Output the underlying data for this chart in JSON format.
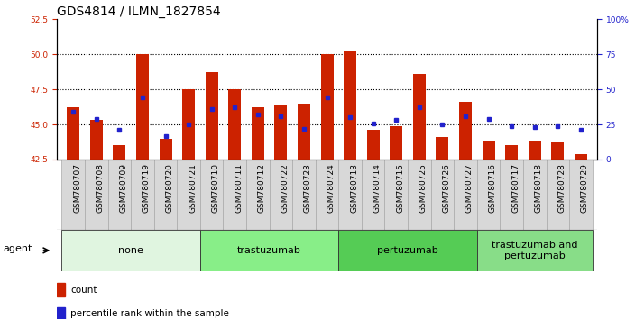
{
  "title": "GDS4814 / ILMN_1827854",
  "samples": [
    "GSM780707",
    "GSM780708",
    "GSM780709",
    "GSM780719",
    "GSM780720",
    "GSM780721",
    "GSM780710",
    "GSM780711",
    "GSM780712",
    "GSM780722",
    "GSM780723",
    "GSM780724",
    "GSM780713",
    "GSM780714",
    "GSM780715",
    "GSM780725",
    "GSM780726",
    "GSM780727",
    "GSM780716",
    "GSM780717",
    "GSM780718",
    "GSM780728",
    "GSM780729"
  ],
  "count_values": [
    46.2,
    45.3,
    43.5,
    50.0,
    44.0,
    47.5,
    48.7,
    47.5,
    46.2,
    46.4,
    46.5,
    50.0,
    50.2,
    44.6,
    44.9,
    48.6,
    44.1,
    46.6,
    43.8,
    43.5,
    43.8,
    43.7,
    42.9
  ],
  "percentile_values": [
    45.9,
    45.4,
    44.6,
    46.9,
    44.2,
    45.0,
    46.1,
    46.2,
    45.7,
    45.6,
    44.7,
    46.9,
    45.5,
    45.1,
    45.3,
    46.2,
    45.0,
    45.6,
    45.4,
    44.9,
    44.8,
    44.9,
    44.6
  ],
  "groups": [
    {
      "label": "none",
      "start": 0,
      "end": 6,
      "color": "#e0f5e0"
    },
    {
      "label": "trastuzumab",
      "start": 6,
      "end": 12,
      "color": "#88ee88"
    },
    {
      "label": "pertuzumab",
      "start": 12,
      "end": 18,
      "color": "#55cc55"
    },
    {
      "label": "trastuzumab and\npertuzumab",
      "start": 18,
      "end": 23,
      "color": "#88dd88"
    }
  ],
  "ylim_left": [
    42.5,
    52.5
  ],
  "ylim_right": [
    0,
    100
  ],
  "yticks_left": [
    42.5,
    45.0,
    47.5,
    50.0,
    52.5
  ],
  "yticks_right": [
    0,
    25,
    50,
    75,
    100
  ],
  "bar_color": "#cc2200",
  "dot_color": "#2222cc",
  "bg_color": "#ffffff",
  "title_fontsize": 10,
  "tick_fontsize": 6.5,
  "group_fontsize": 8,
  "legend_fontsize": 7.5
}
